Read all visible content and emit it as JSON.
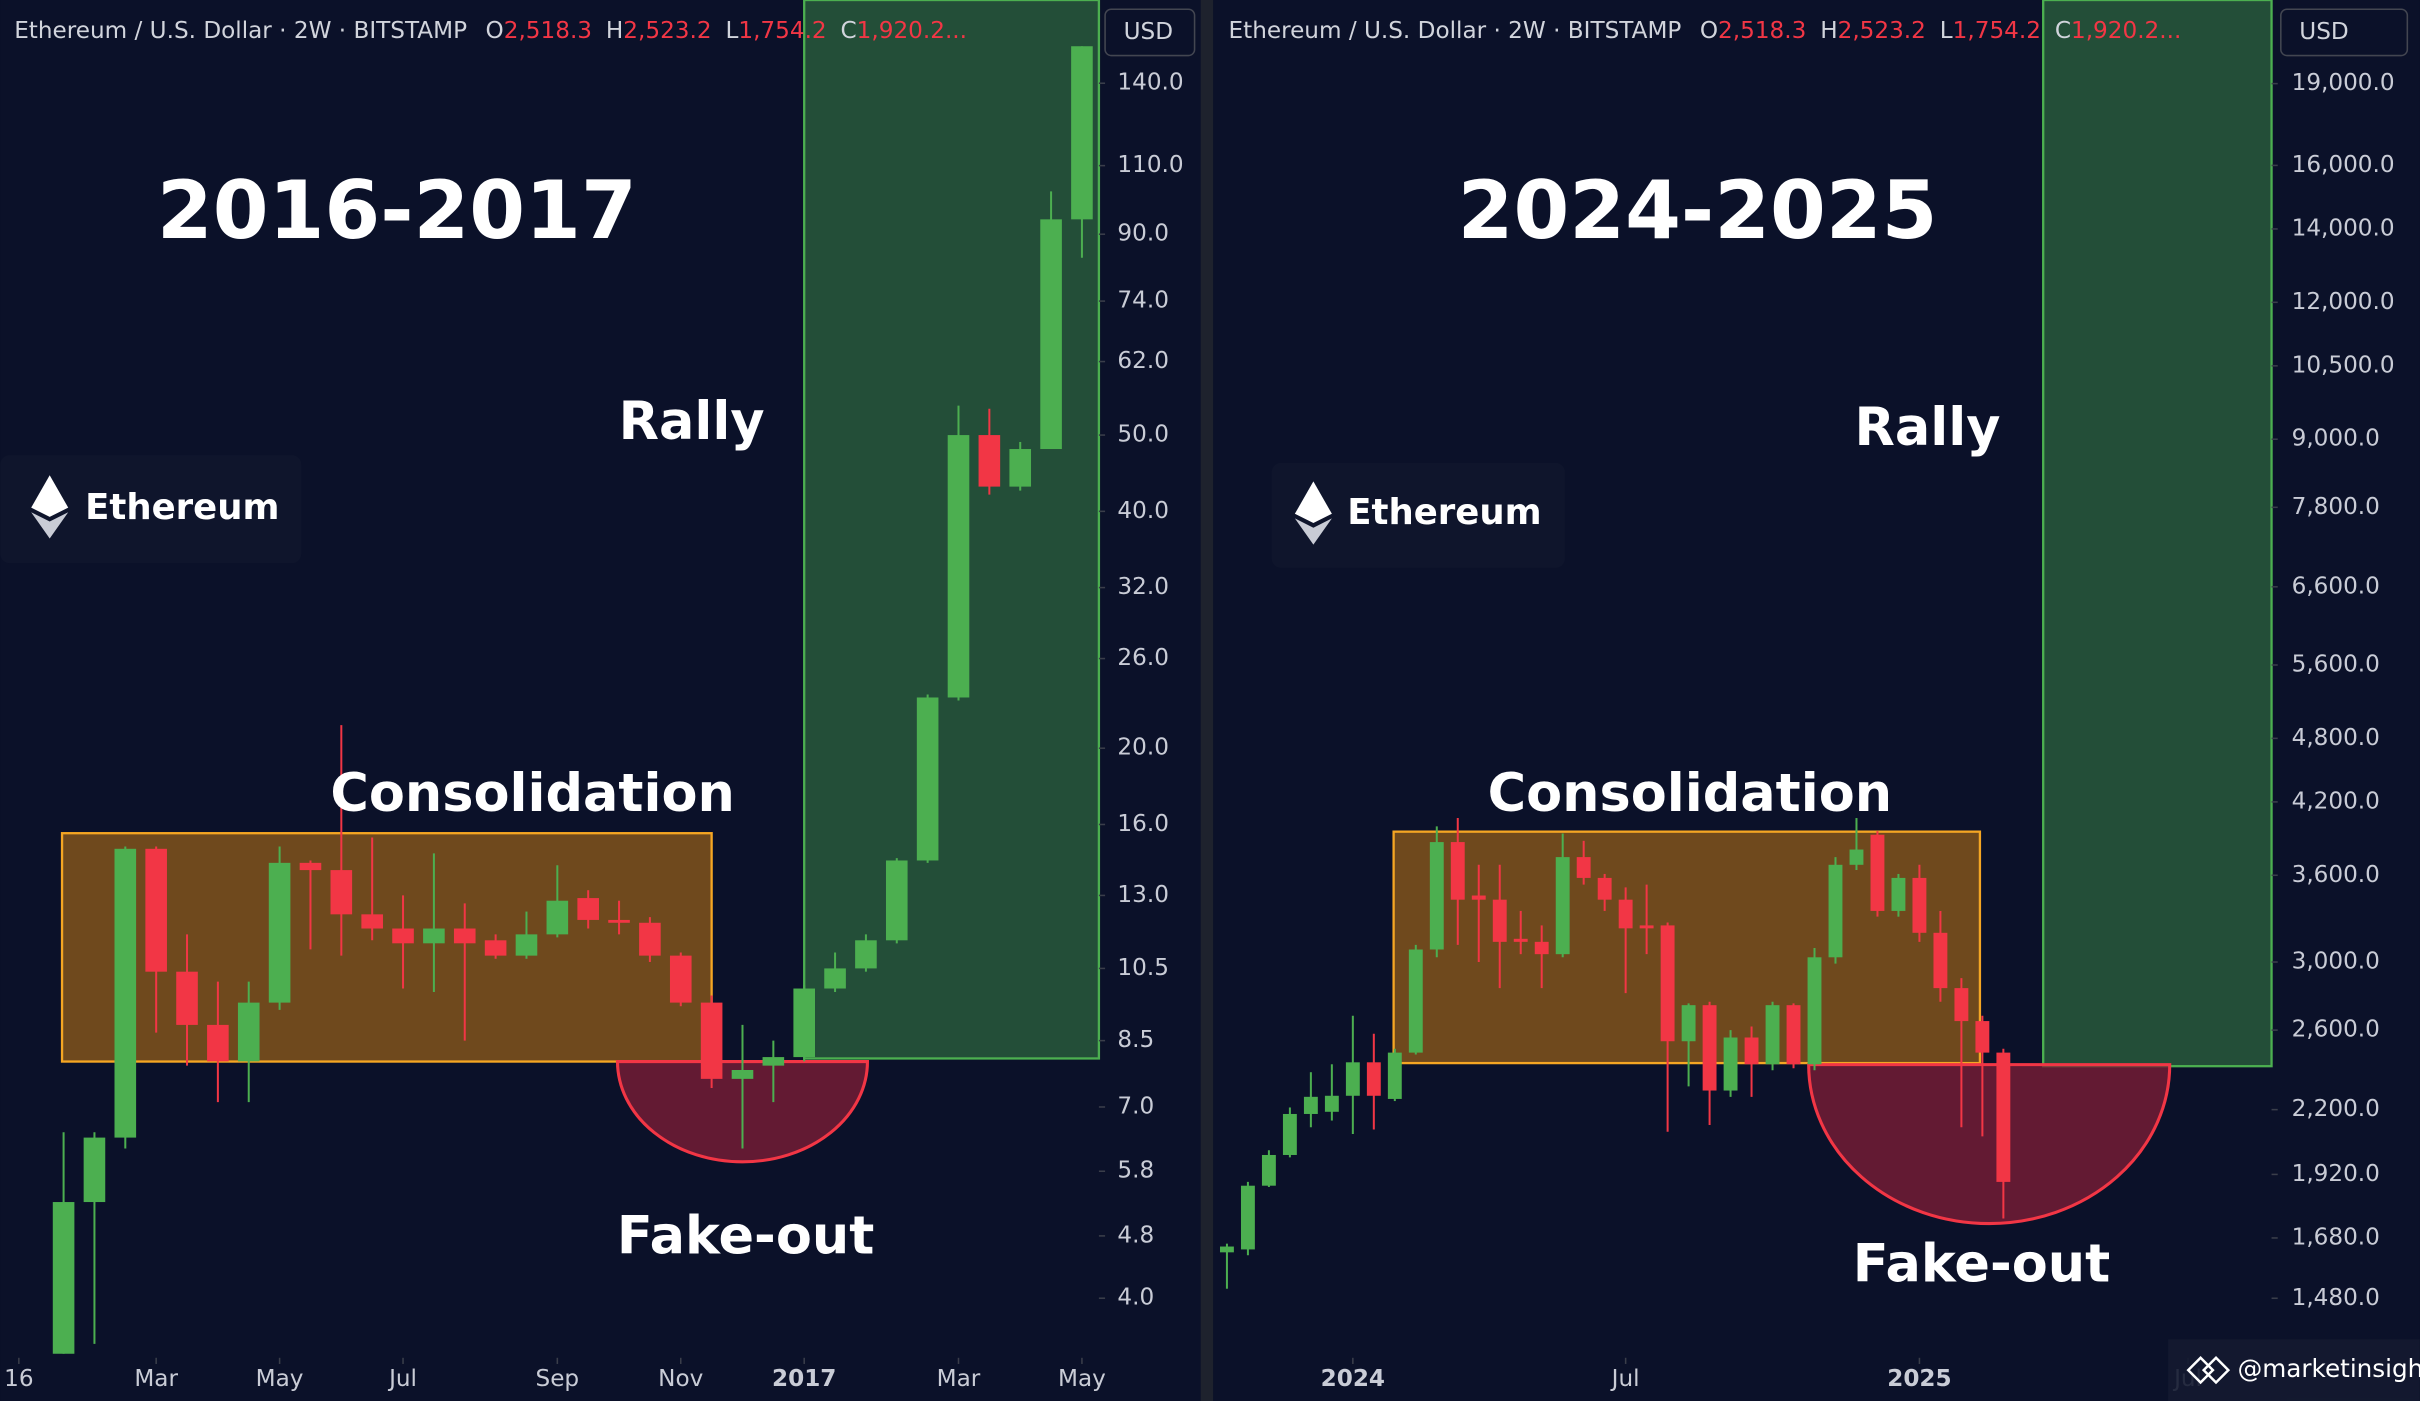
{
  "chart_data": [
    {
      "type": "candlestick",
      "header": {
        "symbol": "Ethereum / U.S. Dollar · 2W · BITSTAMP",
        "ohlc": [
          {
            "key": "O",
            "value": "2,518.3"
          },
          {
            "key": "H",
            "value": "2,523.2"
          },
          {
            "key": "L",
            "value": "1,754.2"
          },
          {
            "key": "C",
            "value": "1,920.2..."
          }
        ]
      },
      "currency": "USD",
      "title": "2016-2017",
      "annotations": {
        "rally": "Rally",
        "consolidation": "Consolidation",
        "fakeout": "Fake-out",
        "asset": "Ethereum"
      },
      "up_color": "#4caf50",
      "down_color": "#f23645",
      "log_scale": true,
      "open": [
        3.4,
        5.3,
        6.4,
        14.9,
        10.4,
        8.9,
        8.0,
        9.5,
        14.3,
        14.0,
        12.3,
        11.8,
        11.3,
        11.8,
        11.4,
        10.9,
        11.6,
        12.9,
        12.1,
        12.0,
        10.9,
        9.5,
        7.6,
        7.9,
        8.1,
        9.9,
        10.5,
        11.4,
        14.4,
        23.2,
        50,
        43,
        48,
        94
      ],
      "high": [
        6.5,
        6.5,
        15,
        15,
        11.6,
        10.1,
        10.1,
        15,
        14.4,
        21.4,
        15.4,
        13,
        14.7,
        12.7,
        11.6,
        12.4,
        14.2,
        13.2,
        12.8,
        12.2,
        11.0,
        9.7,
        8.9,
        8.5,
        10.0,
        11.0,
        11.6,
        14.5,
        23.4,
        54.5,
        54,
        49,
        102,
        156
      ],
      "low": [
        3.4,
        3.5,
        6.2,
        8.7,
        7.9,
        7.1,
        7.1,
        9.3,
        11.1,
        10.9,
        11.4,
        9.9,
        9.8,
        8.5,
        10.8,
        10.8,
        11.5,
        11.8,
        11.6,
        10.7,
        9.4,
        7.4,
        6.2,
        7.1,
        8.0,
        9.8,
        10.4,
        11.3,
        14.3,
        23,
        42,
        42.5,
        48,
        84
      ],
      "close": [
        5.3,
        6.4,
        14.9,
        10.4,
        8.9,
        8.0,
        9.5,
        14.3,
        14.0,
        12.3,
        11.8,
        11.3,
        11.8,
        11.3,
        10.9,
        11.6,
        12.8,
        12.1,
        12.0,
        10.9,
        9.5,
        7.6,
        7.8,
        8.1,
        9.9,
        10.5,
        11.4,
        14.4,
        23.2,
        50,
        43,
        48,
        94,
        156
      ],
      "xlim": [
        -2.05,
        33.55
      ],
      "xticks": [
        {
          "value": -1.45,
          "label": "16"
        },
        {
          "value": 3,
          "label": "Mar"
        },
        {
          "value": 7,
          "label": "May"
        },
        {
          "value": 11,
          "label": "Jul"
        },
        {
          "value": 16,
          "label": "Sep"
        },
        {
          "value": 20,
          "label": "Nov"
        },
        {
          "value": 24,
          "label": "2017"
        },
        {
          "value": 29,
          "label": "Mar"
        },
        {
          "value": 33,
          "label": "May"
        }
      ],
      "ylim": [
        3.36,
        178.6
      ],
      "yticks": [
        {
          "value": 140,
          "label": "140.0"
        },
        {
          "value": 110,
          "label": "110.0"
        },
        {
          "value": 90,
          "label": "90.0"
        },
        {
          "value": 74,
          "label": "74.0"
        },
        {
          "value": 62,
          "label": "62.0"
        },
        {
          "value": 50,
          "label": "50.0"
        },
        {
          "value": 40,
          "label": "40.0"
        },
        {
          "value": 32,
          "label": "32.0"
        },
        {
          "value": 26,
          "label": "26.0"
        },
        {
          "value": 20,
          "label": "20.0"
        },
        {
          "value": 16,
          "label": "16.0"
        },
        {
          "value": 13,
          "label": "13.0"
        },
        {
          "value": 10.5,
          "label": "10.5"
        },
        {
          "value": 8.5,
          "label": "8.5"
        },
        {
          "value": 7,
          "label": "7.0"
        },
        {
          "value": 5.8,
          "label": "5.8"
        },
        {
          "value": 4.8,
          "label": "4.8"
        },
        {
          "value": 4,
          "label": "4.0"
        }
      ]
    },
    {
      "type": "candlestick",
      "header": {
        "symbol": "Ethereum / U.S. Dollar · 2W · BITSTAMP",
        "ohlc": [
          {
            "key": "O",
            "value": "2,518.3"
          },
          {
            "key": "H",
            "value": "2,523.2"
          },
          {
            "key": "L",
            "value": "1,754.2"
          },
          {
            "key": "C",
            "value": "1,920.2..."
          }
        ]
      },
      "currency": "USD",
      "title": "2024-2025",
      "annotations": {
        "rally": "Rally",
        "consolidation": "Consolidation",
        "fakeout": "Fake-out",
        "asset": "Ethereum"
      },
      "watermark": "@marketinsigh",
      "up_color": "#4caf50",
      "down_color": "#f23645",
      "log_scale": true,
      "open": [
        1630,
        1640,
        1875,
        2000,
        2180,
        2190,
        2265,
        2430,
        2250,
        2480,
        3080,
        3860,
        3450,
        3420,
        3150,
        3130,
        3050,
        3740,
        3580,
        3420,
        3240,
        3240,
        2540,
        2740,
        2290,
        2560,
        2420,
        2740,
        2420,
        3030,
        3680,
        3920,
        3340,
        3580,
        3190,
        2840,
        2650,
        2480
      ],
      "high": [
        1660,
        1890,
        2020,
        2210,
        2380,
        2420,
        2680,
        2580,
        2500,
        3110,
        3990,
        4060,
        3680,
        3680,
        3340,
        3240,
        3930,
        3870,
        3610,
        3510,
        3530,
        3260,
        2750,
        2760,
        2600,
        2620,
        2760,
        2750,
        3090,
        3740,
        4060,
        3950,
        3610,
        3680,
        3340,
        2900,
        2680,
        2500
      ],
      "low": [
        1510,
        1620,
        1870,
        1990,
        2120,
        2150,
        2090,
        2110,
        2240,
        2470,
        3030,
        3110,
        3000,
        2840,
        3050,
        2840,
        3030,
        3530,
        3340,
        2810,
        3050,
        2100,
        2310,
        2130,
        2260,
        2260,
        2390,
        2400,
        2390,
        2990,
        3640,
        3300,
        3300,
        3130,
        2760,
        2120,
        2080,
        1750
      ],
      "close": [
        1650,
        1875,
        2000,
        2180,
        2260,
        2265,
        2430,
        2265,
        2480,
        3080,
        3860,
        3420,
        3420,
        3130,
        3130,
        3050,
        3740,
        3580,
        3420,
        3220,
        3220,
        2540,
        2740,
        2290,
        2560,
        2420,
        2740,
        2420,
        3030,
        3680,
        3800,
        3340,
        3580,
        3190,
        2840,
        2650,
        2480,
        1890
      ],
      "xlim": [
        -0.66,
        49.78
      ],
      "xticks": [
        {
          "value": 6,
          "label": "2024"
        },
        {
          "value": 19,
          "label": "Jul"
        },
        {
          "value": 33,
          "label": "2025"
        },
        {
          "value": 45.8,
          "label": "Jul"
        }
      ],
      "ylim": [
        1306,
        22650
      ],
      "yticks": [
        {
          "value": 19000,
          "label": "19,000.0"
        },
        {
          "value": 16000,
          "label": "16,000.0"
        },
        {
          "value": 14000,
          "label": "14,000.0"
        },
        {
          "value": 12000,
          "label": "12,000.0"
        },
        {
          "value": 10500,
          "label": "10,500.0"
        },
        {
          "value": 9000,
          "label": "9,000.0"
        },
        {
          "value": 7800,
          "label": "7,800.0"
        },
        {
          "value": 6600,
          "label": "6,600.0"
        },
        {
          "value": 5600,
          "label": "5,600.0"
        },
        {
          "value": 4800,
          "label": "4,800.0"
        },
        {
          "value": 4200,
          "label": "4,200.0"
        },
        {
          "value": 3600,
          "label": "3,600.0"
        },
        {
          "value": 3000,
          "label": "3,000.0"
        },
        {
          "value": 2600,
          "label": "2,600.0"
        },
        {
          "value": 2200,
          "label": "2,200.0"
        },
        {
          "value": 1920,
          "label": "1,920.0"
        },
        {
          "value": 1680,
          "label": "1,680.0"
        },
        {
          "value": 1480,
          "label": "1,480.0"
        }
      ]
    }
  ]
}
